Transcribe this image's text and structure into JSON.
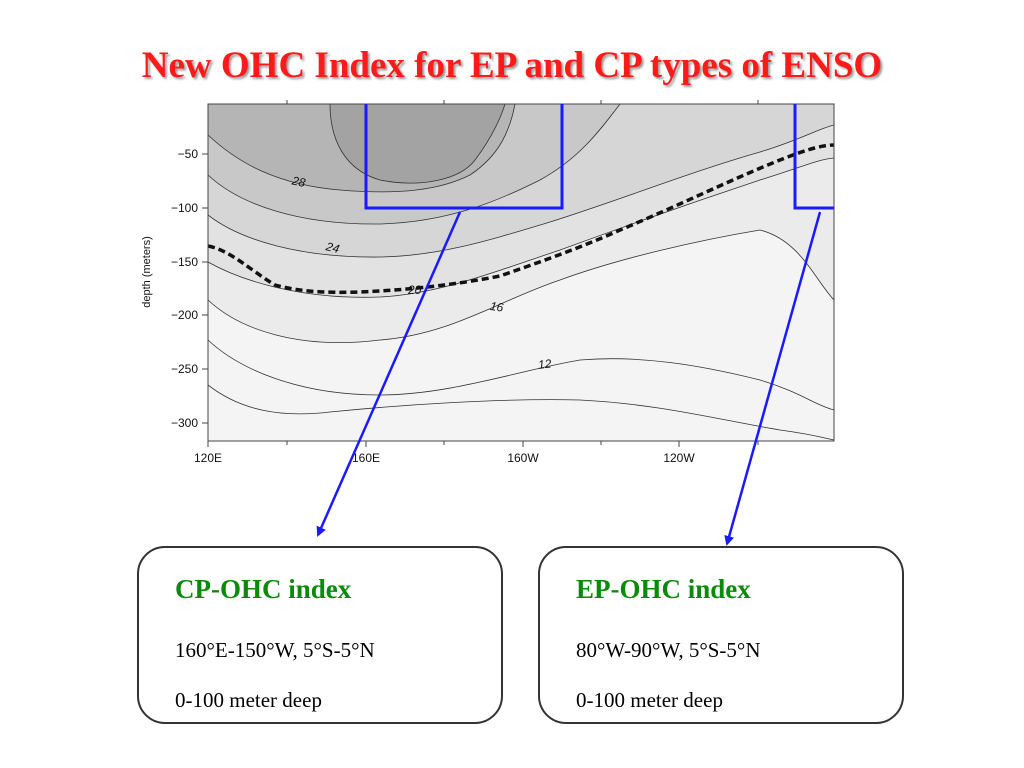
{
  "title": "New OHC Index for EP and CP types of ENSO",
  "plot": {
    "ylabel": "depth (meters)",
    "y_ticks": [
      "−50",
      "−100",
      "−150",
      "−200",
      "−250",
      "−300"
    ],
    "x_ticks": [
      "120E",
      "160E",
      "160W",
      "120W"
    ],
    "contour_labels": [
      "28",
      "24",
      "20",
      "16",
      "12"
    ],
    "colors": {
      "highlight_box": "#1a1aff",
      "dashed_isotherm": "#111111"
    }
  },
  "boxes": [
    {
      "title": "CP-OHC index",
      "region": "160°E-150°W, 5°S-5°N",
      "depth": "0-100 meter deep"
    },
    {
      "title": "EP-OHC index",
      "region": "80°W-90°W, 5°S-5°N",
      "depth": "0-100 meter deep"
    }
  ]
}
